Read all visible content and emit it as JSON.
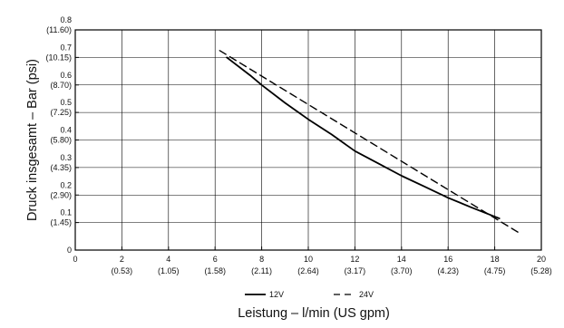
{
  "chart_data": {
    "type": "line",
    "ylabel": "Druck insgesamt – Bar (psi)",
    "xlabel": "Leistung – l/min (US gpm)",
    "xlim": [
      0,
      20
    ],
    "ylim": [
      0,
      0.8
    ],
    "grid": true,
    "legend_position": "bottom",
    "x_ticks": [
      {
        "value": 0,
        "label": "0",
        "sub": ""
      },
      {
        "value": 2,
        "label": "2",
        "sub": "(0.53)"
      },
      {
        "value": 4,
        "label": "4",
        "sub": "(1.05)"
      },
      {
        "value": 6,
        "label": "6",
        "sub": "(1.58)"
      },
      {
        "value": 8,
        "label": "8",
        "sub": "(2.11)"
      },
      {
        "value": 10,
        "label": "10",
        "sub": "(2.64)"
      },
      {
        "value": 12,
        "label": "12",
        "sub": "(3.17)"
      },
      {
        "value": 14,
        "label": "14",
        "sub": "(3.70)"
      },
      {
        "value": 16,
        "label": "16",
        "sub": "(4.23)"
      },
      {
        "value": 18,
        "label": "18",
        "sub": "(4.75)"
      },
      {
        "value": 20,
        "label": "20",
        "sub": "(5.28)"
      }
    ],
    "y_ticks": [
      {
        "value": 0,
        "label": "0",
        "sub": ""
      },
      {
        "value": 0.1,
        "label": "0.1",
        "sub": "(1.45)"
      },
      {
        "value": 0.2,
        "label": "0.2",
        "sub": "(2.90)"
      },
      {
        "value": 0.3,
        "label": "0.3",
        "sub": "(4.35)"
      },
      {
        "value": 0.4,
        "label": "0.4",
        "sub": "(5.80)"
      },
      {
        "value": 0.5,
        "label": "0.5",
        "sub": "(7.25)"
      },
      {
        "value": 0.6,
        "label": "0.6",
        "sub": "(8.70)"
      },
      {
        "value": 0.7,
        "label": "0.7",
        "sub": "(10.15)"
      },
      {
        "value": 0.8,
        "label": "0.8",
        "sub": "(11.60)"
      }
    ],
    "series": [
      {
        "name": "12V",
        "style": "solid",
        "color": "#000000",
        "points": [
          [
            6.5,
            0.7
          ],
          [
            7.5,
            0.635
          ],
          [
            8.0,
            0.6
          ],
          [
            9.0,
            0.535
          ],
          [
            10.0,
            0.475
          ],
          [
            11.0,
            0.42
          ],
          [
            12.0,
            0.36
          ],
          [
            13.0,
            0.315
          ],
          [
            14.0,
            0.27
          ],
          [
            15.0,
            0.23
          ],
          [
            16.0,
            0.19
          ],
          [
            17.0,
            0.155
          ],
          [
            18.2,
            0.115
          ]
        ]
      },
      {
        "name": "24V",
        "style": "dashed",
        "color": "#000000",
        "points": [
          [
            6.2,
            0.725
          ],
          [
            19.0,
            0.065
          ]
        ]
      }
    ]
  }
}
